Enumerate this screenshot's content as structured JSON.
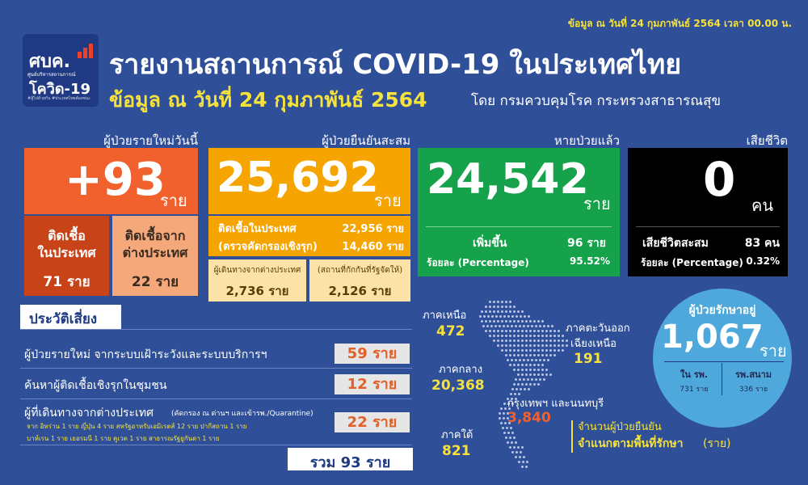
{
  "header": {
    "date_top": "ข้อมูล ณ วันที่ 24 กุมภาพันธ์ 2564 เวลา 00.00 น.",
    "title": "รายงานสถานการณ์ COVID-19 ในประเทศไทย",
    "subtitle_date": "ข้อมูล ณ วันที่ 24 กุมภาพันธ์ 2564",
    "subtitle_source": "โดย กรมควบคุมโรค กระทรวงสาธารณสุข"
  },
  "logo": {
    "main": "ศบค.",
    "sub": "ศูนย์บริหารสถานการณ์",
    "covid": "โควิด-19",
    "tag": "#สู้ไปด้วยกัน #ประเทศไทยต้องชนะ"
  },
  "new_cases": {
    "header": "ผู้ป่วยรายใหม่วันนี้",
    "value": "+93",
    "unit": "ราย",
    "domestic_label_1": "ติดเชื้อ",
    "domestic_label_2": "ในประเทศ",
    "domestic_value": "71 ราย",
    "imported_label_1": "ติดเชื้อจาก",
    "imported_label_2": "ต่างประเทศ",
    "imported_value": "22 ราย"
  },
  "cumulative": {
    "header": "ผู้ป่วยยืนยันสะสม",
    "value": "25,692",
    "unit": "ราย",
    "domestic_label": "ติดเชื้อในประเทศ",
    "domestic_value": "22,956 ราย",
    "active_label": "(ตรวจคัดกรองเชิงรุก)",
    "active_value": "14,460 ราย",
    "travel_label": "ผู้เดินทางจากต่างประเทศ",
    "travel_value": "2,736 ราย",
    "quarantine_label": "(สถานที่กักกันที่รัฐจัดให้)",
    "quarantine_value": "2,126 ราย"
  },
  "recovered": {
    "header": "หายป่วยแล้ว",
    "value": "24,542",
    "unit": "ราย",
    "increase_label": "เพิ่มขึ้น",
    "increase_value": "96 ราย",
    "pct_label": "ร้อยละ (Percentage)",
    "pct_value": "95.52%"
  },
  "deaths": {
    "header": "เสียชีวิต",
    "value": "0",
    "unit": "คน",
    "cum_label": "เสียชีวิตสะสม",
    "cum_value": "83 คน",
    "pct_label": "ร้อยละ (Percentage)",
    "pct_value": "0.32%"
  },
  "risk": {
    "header": "ประวัติเสี่ยง",
    "rows": [
      {
        "label": "ผู้ป่วยรายใหม่  จากระบบเฝ้าระวังและระบบบริการฯ",
        "value": "59 ราย"
      },
      {
        "label": "ค้นหาผู้ติดเชื้อเชิงรุกในชุมชน",
        "value": "12 ราย"
      },
      {
        "label": "ผู้ที่เดินทางจากต่างประเทศ",
        "note": "(คัดกรอง ณ ด่านฯ และเข้ารพ./Quarantine)",
        "value": "22 ราย"
      }
    ],
    "origins_1": "จาก อิหร่าน 1 ราย ญี่ปุ่น 4 ราย สหรัฐอาหรับเอมิเรตส์ 12 ราย ปากีสถาน 1 ราย",
    "origins_2": "บาห์เรน 1 ราย เยอรมนี 1 ราย คูเวต 1 ราย สาธารณรัฐยูกันดา 1 ราย",
    "total": "รวม 93 ราย"
  },
  "regions": {
    "north_name": "ภาคเหนือ",
    "north_value": "472",
    "northeast_name_1": "ภาคตะวันออก",
    "northeast_name_2": "เฉียงเหนือ",
    "northeast_value": "191",
    "central_name": "ภาคกลาง",
    "central_value": "20,368",
    "bangkok_name": "กรุงเทพฯ และนนทบุรี",
    "bangkok_value": "3,840",
    "south_name": "ภาคใต้",
    "south_value": "821",
    "caption_1": "จำนวนผู้ป่วยยืนยัน",
    "caption_2": "จำแนกตามพื้นที่รักษา",
    "caption_2_unit": "(ราย)"
  },
  "hospitalized": {
    "header": "ผู้ป่วยรักษาอยู่",
    "value": "1,067",
    "unit": "ราย",
    "hospital_label": "ใน รพ.",
    "hospital_value": "731 ราย",
    "field_label": "รพ.สนาม",
    "field_value": "336 ราย"
  },
  "colors": {
    "background": "#2f4f98",
    "new_cases": "#f0612d",
    "new_cases_domestic": "#c84318",
    "new_cases_imported": "#f5a87a",
    "cumulative": "#f5a400",
    "recovered": "#16a24a",
    "deaths": "#000000",
    "hospitalized": "#4fa8db",
    "highlight": "#f5e23c"
  }
}
